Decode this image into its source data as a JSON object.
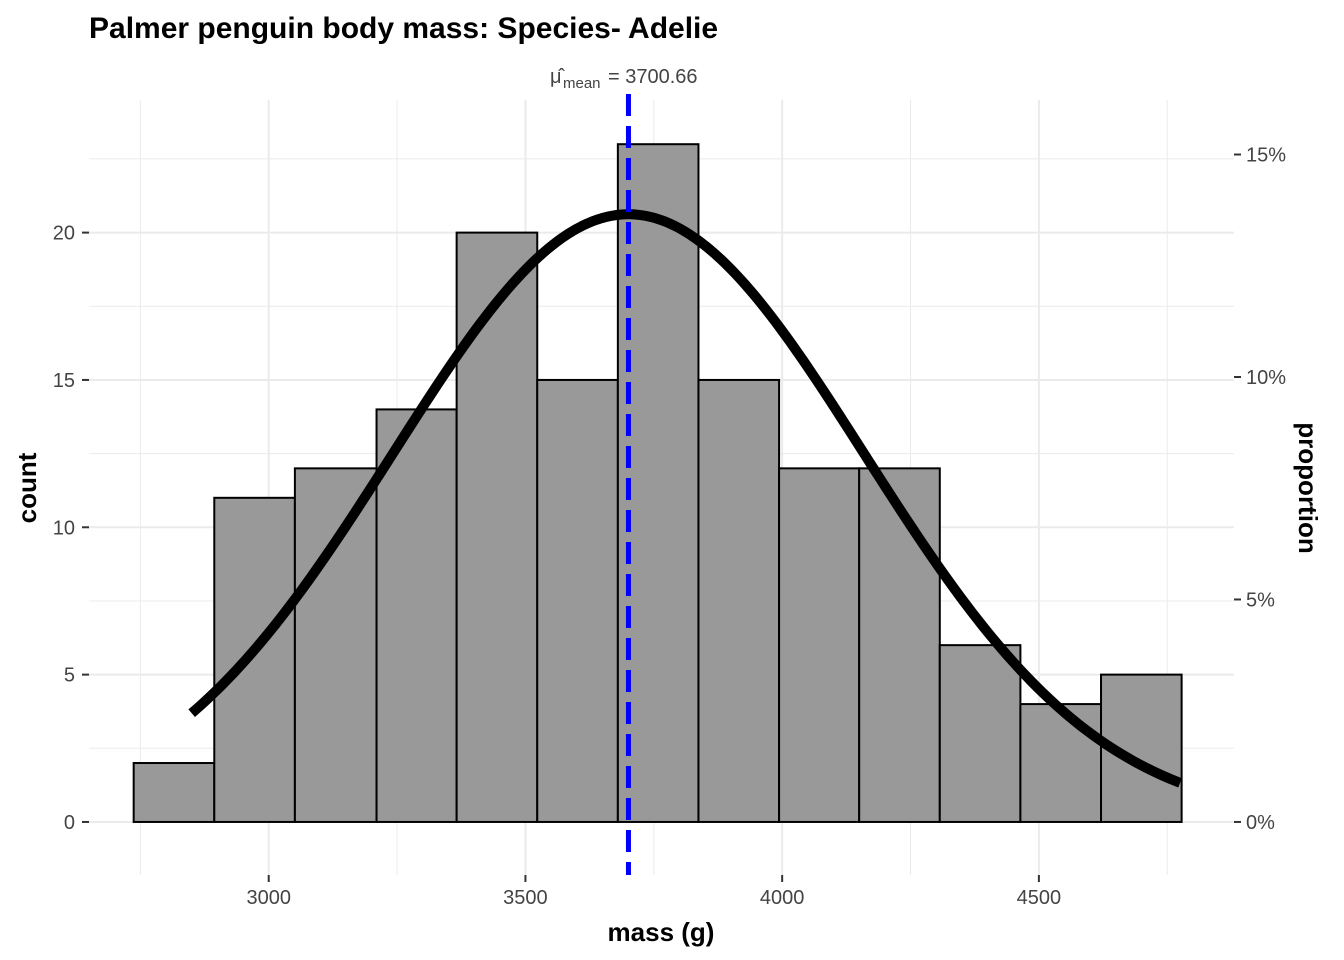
{
  "chart_data": {
    "type": "bar",
    "title": "Palmer penguin body mass: Species- Adelie",
    "xlabel": "mass (g)",
    "ylabel": "count",
    "y2label": "proportion",
    "xlim": [
      2650,
      4880
    ],
    "ylim": [
      -1.8,
      24.5
    ],
    "x_ticks": [
      3000,
      3500,
      4000,
      4500
    ],
    "x_tick_labels": [
      "3000",
      "3500",
      "4000",
      "4500"
    ],
    "y_ticks": [
      0,
      5,
      10,
      15,
      20
    ],
    "y_tick_labels": [
      "0",
      "5",
      "10",
      "15",
      "20"
    ],
    "y2_ticks": [
      0,
      0.05,
      0.1,
      0.15
    ],
    "y2_tick_labels": [
      "0%",
      "5%",
      "10%",
      "15%"
    ],
    "grid": true,
    "bins": [
      {
        "x0": 2737,
        "x1": 2894,
        "count": 2
      },
      {
        "x0": 2894,
        "x1": 3051,
        "count": 11
      },
      {
        "x0": 3051,
        "x1": 3210,
        "count": 12
      },
      {
        "x0": 3210,
        "x1": 3366,
        "count": 14
      },
      {
        "x0": 3366,
        "x1": 3523,
        "count": 20
      },
      {
        "x0": 3523,
        "x1": 3680,
        "count": 15
      },
      {
        "x0": 3680,
        "x1": 3837,
        "count": 23
      },
      {
        "x0": 3837,
        "x1": 3994,
        "count": 15
      },
      {
        "x0": 3994,
        "x1": 4150,
        "count": 12
      },
      {
        "x0": 4150,
        "x1": 4307,
        "count": 12
      },
      {
        "x0": 4307,
        "x1": 4464,
        "count": 6
      },
      {
        "x0": 4464,
        "x1": 4621,
        "count": 4
      },
      {
        "x0": 4621,
        "x1": 4778,
        "count": 5
      }
    ],
    "normal_curve": {
      "mean": 3700.66,
      "sd": 458.6,
      "n": 151,
      "binwidth": 157,
      "x_range": [
        2850,
        4775
      ]
    },
    "mean_line": {
      "value": 3700.66,
      "label_symbol": "μ̂",
      "label_sub": "mean",
      "label_text": "= 3700.66",
      "color": "#0000FF"
    },
    "colors": {
      "bar_fill": "#999999",
      "bar_stroke": "#000000",
      "curve": "#000000",
      "grid": "#EBEBEB",
      "mean_line": "#0000FF"
    }
  }
}
